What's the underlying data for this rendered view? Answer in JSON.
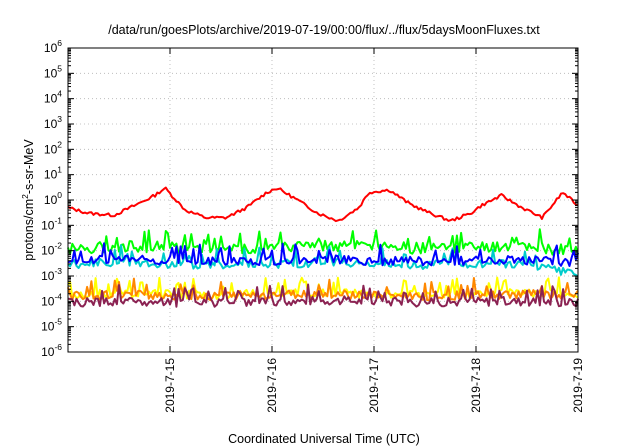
{
  "chart_data": {
    "type": "line",
    "title": "/data/run/goesPlots/archive/2019-07-19/00:00/flux/../flux/5daysMoonFluxes.txt",
    "xlabel": "Coordinated Universal Time (UTC)",
    "ylabel": "protons/cm²-s-sr-MeV",
    "x_range": [
      "2019-07-14T00:00",
      "2019-07-19T00:00"
    ],
    "x_ticks": [
      "2019-7-15",
      "2019-7-16",
      "2019-7-17",
      "2019-7-18",
      "2019-7-19"
    ],
    "y_scale": "log",
    "ylim": [
      1e-06,
      1000000.0
    ],
    "y_tick_labels": [
      {
        "base": "10",
        "exp": "6"
      },
      {
        "base": "10",
        "exp": "5"
      },
      {
        "base": "10",
        "exp": "4"
      },
      {
        "base": "10",
        "exp": "3"
      },
      {
        "base": "10",
        "exp": "2"
      },
      {
        "base": "10",
        "exp": "1"
      },
      {
        "base": "10",
        "exp": "0"
      },
      {
        "base": "10",
        "exp": "-1"
      },
      {
        "base": "10",
        "exp": "-2"
      },
      {
        "base": "10",
        "exp": "-3"
      },
      {
        "base": "10",
        "exp": "-4"
      },
      {
        "base": "10",
        "exp": "-5"
      },
      {
        "base": "10",
        "exp": "-6"
      }
    ],
    "grid": true,
    "series": [
      {
        "color": "#ff0000",
        "x_days": [
          0,
          0.2,
          0.45,
          0.65,
          0.85,
          0.95,
          1.15,
          1.35,
          1.55,
          1.75,
          1.95,
          2.05,
          2.25,
          2.45,
          2.65,
          2.85,
          2.95,
          3.15,
          3.35,
          3.55,
          3.75,
          3.95,
          4.05,
          4.25,
          4.45,
          4.65,
          4.85,
          5.0
        ],
        "values": [
          0.5,
          0.3,
          0.25,
          0.6,
          1.5,
          3.0,
          0.4,
          0.2,
          0.2,
          0.5,
          2.0,
          3.0,
          1.0,
          0.3,
          0.15,
          0.5,
          2.0,
          2.5,
          0.7,
          0.3,
          0.15,
          0.3,
          0.6,
          1.5,
          0.5,
          0.2,
          2.0,
          0.6
        ]
      },
      {
        "color": "#00ff00",
        "x_days": [
          0,
          0.5,
          1,
          1.5,
          2,
          2.5,
          3,
          3.5,
          4,
          4.5,
          5.0
        ],
        "values": [
          0.012,
          0.015,
          0.014,
          0.012,
          0.013,
          0.016,
          0.014,
          0.012,
          0.013,
          0.015,
          0.009
        ]
      },
      {
        "color": "#00cccc",
        "x_days": [
          0,
          0.5,
          1,
          1.5,
          2,
          2.5,
          3,
          3.5,
          4,
          4.5,
          5.0
        ],
        "values": [
          0.003,
          0.0035,
          0.003,
          0.0028,
          0.003,
          0.0035,
          0.003,
          0.0028,
          0.003,
          0.0032,
          0.0012
        ]
      },
      {
        "color": "#0000ff",
        "x_days": [
          0,
          0.5,
          1,
          1.5,
          2,
          2.5,
          3,
          3.5,
          4,
          4.5,
          5.0
        ],
        "values": [
          0.004,
          0.0045,
          0.004,
          0.0038,
          0.004,
          0.0045,
          0.004,
          0.0038,
          0.004,
          0.0042,
          0.0035
        ]
      },
      {
        "color": "#ffff00",
        "x_days": [
          0,
          0.5,
          1,
          1.5,
          2,
          2.5,
          3,
          3.5,
          4,
          4.5,
          5.0
        ],
        "values": [
          0.00018,
          0.0002,
          0.00019,
          0.00018,
          0.0002,
          0.00021,
          0.00019,
          0.00018,
          0.0002,
          0.00021,
          0.0002
        ]
      },
      {
        "color": "#ff8800",
        "x_days": [
          0,
          0.5,
          1,
          1.5,
          2,
          2.5,
          3,
          3.5,
          4,
          4.5,
          5.0
        ],
        "values": [
          0.00016,
          0.00018,
          0.00017,
          0.00016,
          0.00018,
          0.00019,
          0.00017,
          0.00016,
          0.00018,
          0.00019,
          0.00018
        ]
      },
      {
        "color": "#8b2252",
        "x_days": [
          0,
          0.5,
          1,
          1.5,
          2,
          2.5,
          3,
          3.5,
          4,
          4.5,
          5.0
        ],
        "values": [
          9e-05,
          0.0001,
          9e-05,
          9e-05,
          0.0001,
          0.00011,
          0.0001,
          9e-05,
          0.0001,
          0.0001,
          9e-05
        ]
      }
    ]
  }
}
